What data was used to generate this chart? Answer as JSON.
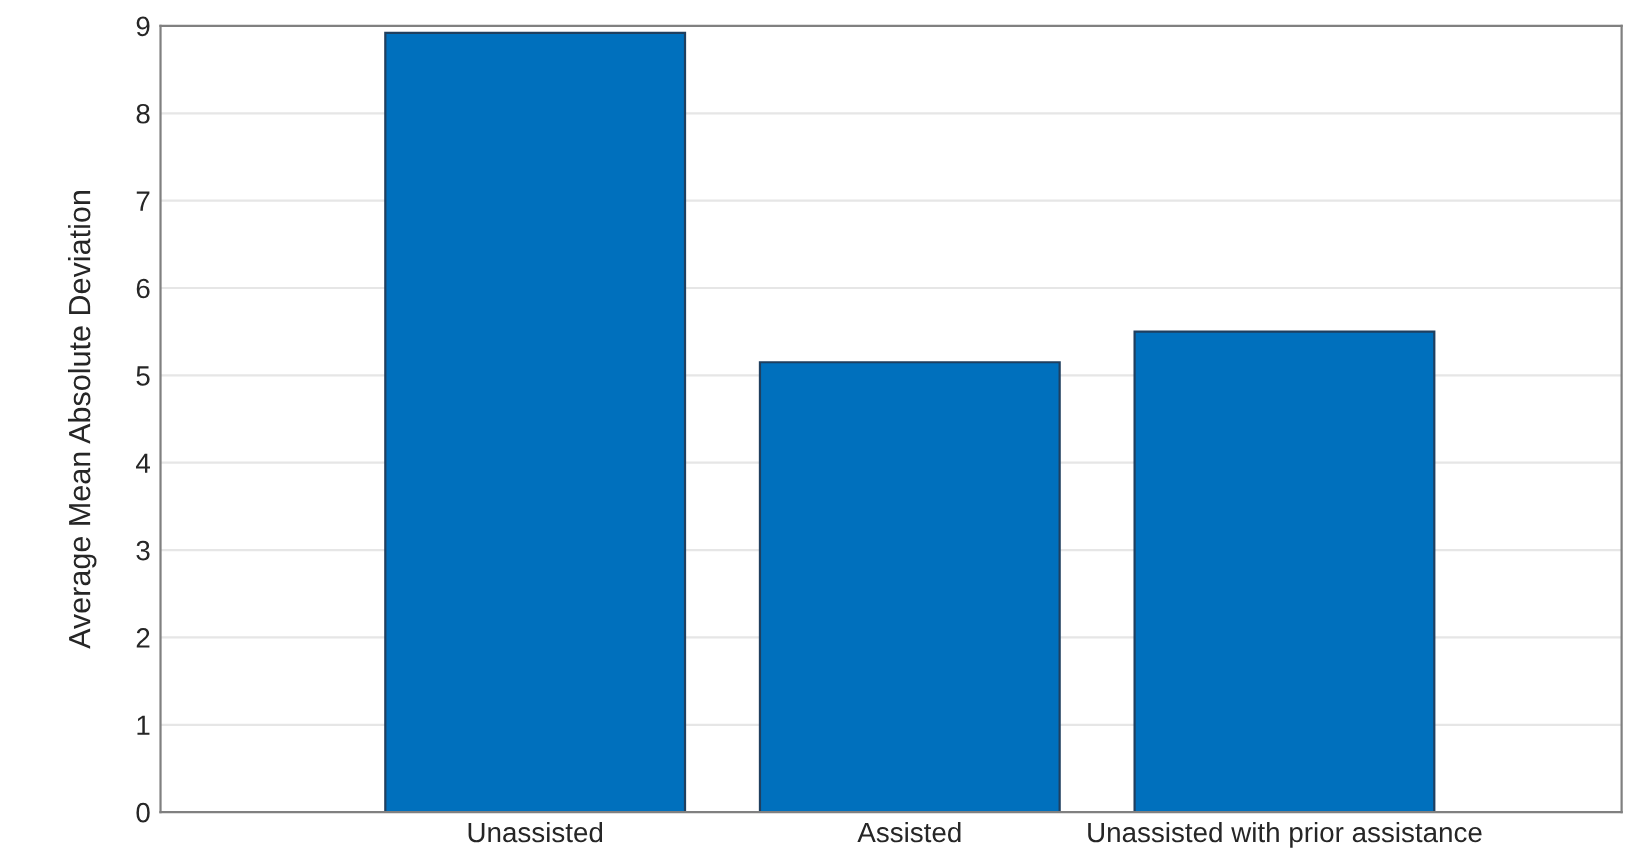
{
  "chart_data": {
    "type": "bar",
    "ylabel": "Average Mean Absolute Deviation",
    "categories": [
      "Unassisted",
      "Assisted",
      "Unassisted with prior assistance"
    ],
    "values": [
      8.92,
      5.15,
      5.5
    ],
    "color": "#0070bd",
    "ylim": [
      0,
      9
    ],
    "yticks": [
      0,
      1,
      2,
      3,
      4,
      5,
      6,
      7,
      8,
      9
    ],
    "grid": "y"
  }
}
